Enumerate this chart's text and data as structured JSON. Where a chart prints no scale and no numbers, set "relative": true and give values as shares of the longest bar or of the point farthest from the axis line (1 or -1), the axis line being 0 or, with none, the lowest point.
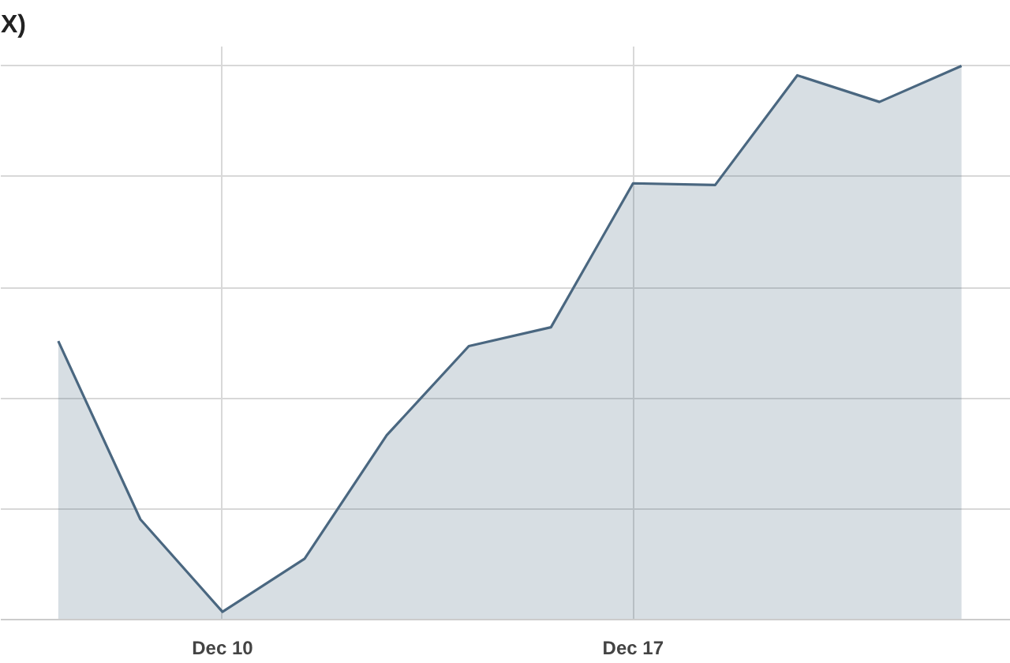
{
  "chart_data": {
    "type": "area",
    "title": "X)",
    "relative": true,
    "categories": [
      null,
      null,
      "Dec 10",
      null,
      null,
      null,
      null,
      "Dec 17",
      null,
      null,
      null,
      null
    ],
    "series": [
      {
        "color": "#4a6780",
        "values": [
          0.503,
          0.181,
          0.014,
          0.11,
          0.333,
          0.494,
          0.528,
          0.788,
          0.785,
          0.983,
          0.935,
          1.0
        ]
      }
    ],
    "grid": true,
    "marker": "none",
    "line_style": "solid"
  }
}
